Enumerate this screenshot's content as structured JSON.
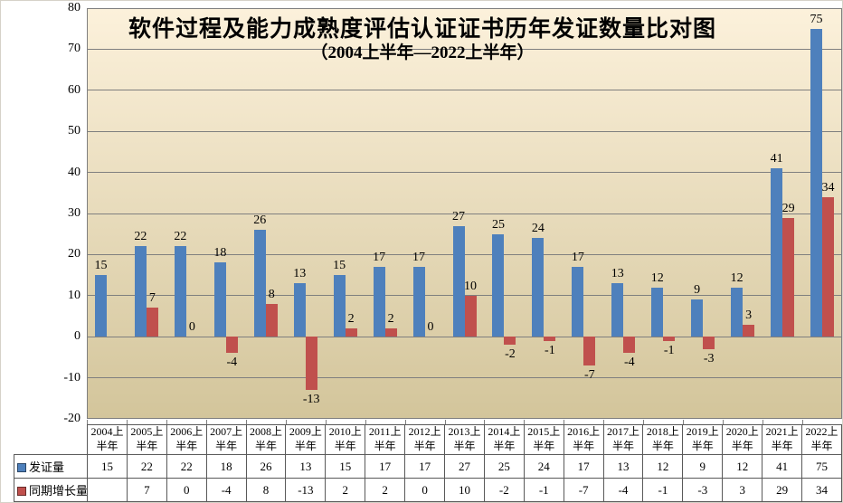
{
  "chart_data": {
    "type": "bar",
    "title": "软件过程及能力成熟度评估认证证书历年发证数量比对图",
    "subtitle": "（2004上半年—2022上半年）",
    "categories": [
      "2004上半年",
      "2005上半年",
      "2006上半年",
      "2007上半年",
      "2008上半年",
      "2009上半年",
      "2010上半年",
      "2011上半年",
      "2012上半年",
      "2013上半年",
      "2014上半年",
      "2015上半年",
      "2016上半年",
      "2017上半年",
      "2018上半年",
      "2019上半年",
      "2020上半年",
      "2021上半年",
      "2022上半年"
    ],
    "series": [
      {
        "name": "发证量",
        "color": "#4E80BC",
        "values": [
          15,
          22,
          22,
          18,
          26,
          13,
          15,
          17,
          17,
          27,
          25,
          24,
          17,
          13,
          12,
          9,
          12,
          41,
          75
        ]
      },
      {
        "name": "同期增长量",
        "color": "#C0504D",
        "values": [
          null,
          7,
          0,
          -4,
          8,
          -13,
          2,
          2,
          0,
          10,
          -2,
          -1,
          -7,
          -4,
          -1,
          -3,
          3,
          29,
          34
        ]
      }
    ],
    "ylim": [
      -20,
      80
    ],
    "ytick_step": 10,
    "grid": true,
    "data_labels": true,
    "legend_position": "data-table-left",
    "plot_background_top": "#FCF1DB",
    "plot_background_bottom": "#D3C59B",
    "gridline_color": "#7F7F7F",
    "label_color": "#000000"
  }
}
